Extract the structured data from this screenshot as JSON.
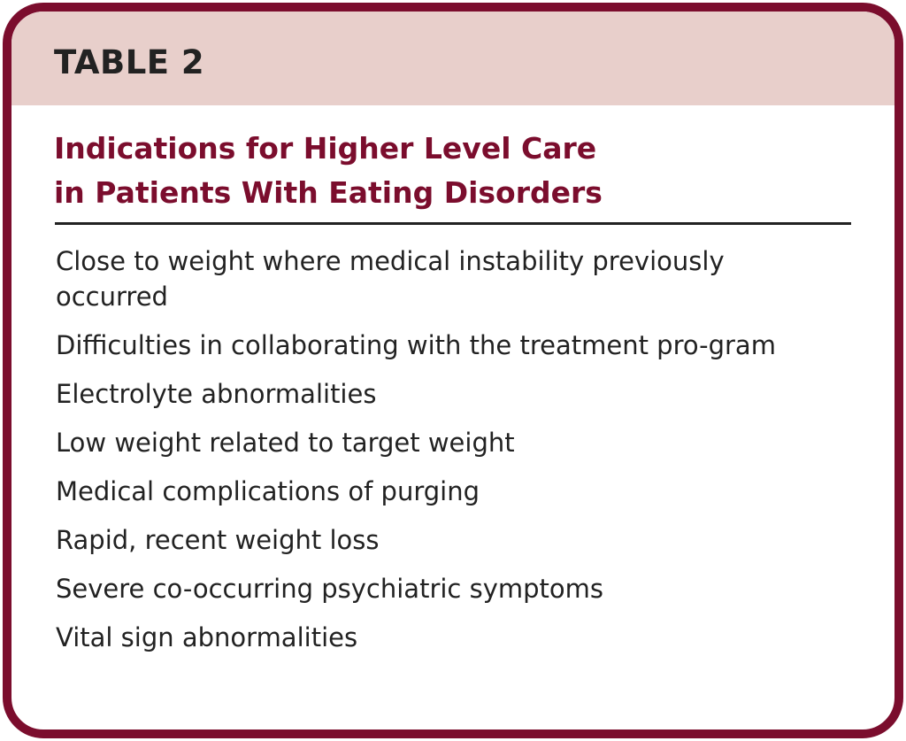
{
  "table_label": "TABLE 2",
  "title_lines": [
    "Indications for Higher Level Care",
    "in Patients With Eating Disorders"
  ],
  "items": [
    "Close to weight where medical instability previously occurred",
    "Difficulties in collaborating with the treatment pro-gram",
    "Electrolyte abnormalities",
    "Low weight related to target weight",
    "Medical complications of purging",
    "Rapid, recent weight loss",
    "Severe co-occurring psychiatric symptoms",
    "Vital sign abnormalities"
  ],
  "colors": {
    "accent": "#7b0d2d",
    "header_bg": "#e8cfcb",
    "text": "#222222"
  }
}
